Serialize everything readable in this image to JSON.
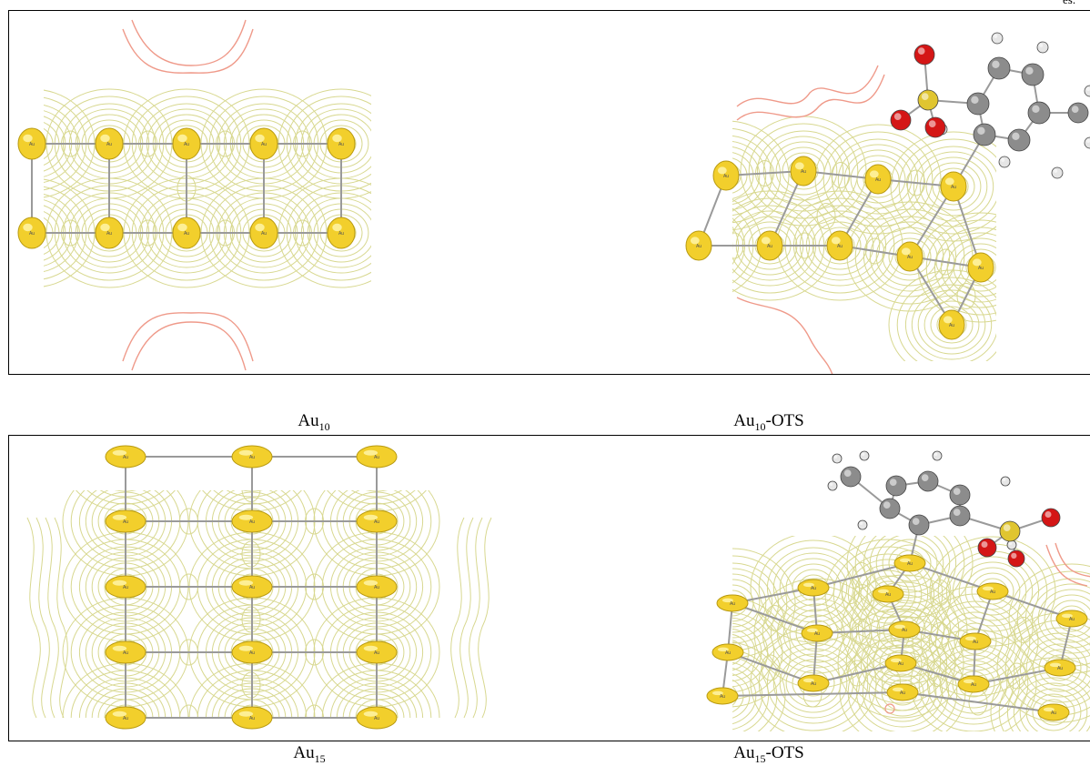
{
  "corner_text": "es.",
  "figures": [
    {
      "id": "au10",
      "label_base": "Au",
      "label_sub": "10",
      "label_suffix": ""
    },
    {
      "id": "au10-ots",
      "label_base": "Au",
      "label_sub": "10",
      "label_suffix": "-OTS"
    },
    {
      "id": "au15",
      "label_base": "Au",
      "label_sub": "15",
      "label_suffix": ""
    },
    {
      "id": "au15-ots",
      "label_base": "Au",
      "label_sub": "15",
      "label_suffix": "-OTS"
    }
  ],
  "atom_label": "Au",
  "colors": {
    "gold": "#f2cf2c",
    "contour": "#d8d890",
    "contour_red": "#ef9a8a",
    "carbon": "#8c8c8c",
    "oxygen": "#d41616",
    "hydrogen": "#e6e6e6",
    "sulfur": "#e0c530"
  }
}
